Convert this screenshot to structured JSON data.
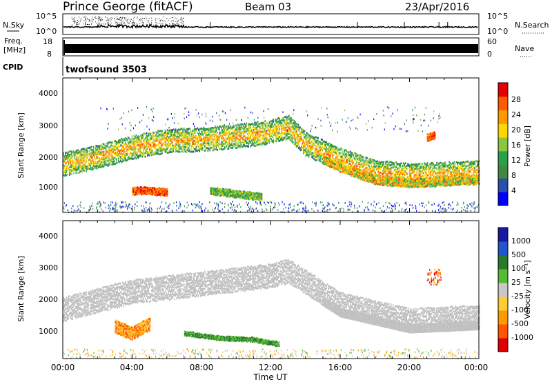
{
  "header": {
    "station": "Prince George (fitACF)",
    "beam": "Beam 03",
    "date": "23/Apr/2016"
  },
  "strips": {
    "nsky_label": "N.Sky",
    "nsky_ticks": [
      "10^5",
      "10^0"
    ],
    "nsearch_label": "N.Search",
    "nsearch_ticks": [
      "10^5",
      "10^0"
    ],
    "freq_label_1": "Freq.",
    "freq_label_2": "[MHz]",
    "freq_ticks": [
      "18",
      "8"
    ],
    "nave_label": "Nave",
    "nave_ticks": [
      "60",
      "0"
    ],
    "cpid_label": "CPID",
    "cpid_value": "twofsound 3503"
  },
  "x_axis": {
    "label": "Time UT",
    "ticks": [
      "00:00",
      "04:00",
      "08:00",
      "12:00",
      "16:00",
      "20:00",
      "00:00"
    ]
  },
  "panels": {
    "power": {
      "ylabel": "Slant Range [km]",
      "yticks": [
        "4000",
        "3000",
        "2000",
        "1000"
      ],
      "cbar_label": "Power [dB]",
      "cbar_ticks": [
        "28",
        "24",
        "20",
        "16",
        "12",
        "8",
        "4"
      ]
    },
    "velocity": {
      "ylabel": "Slant Range [km]",
      "yticks": [
        "4000",
        "3000",
        "2000",
        "1000"
      ],
      "cbar_label": "Velocity [m s⁻¹]",
      "cbar_ticks": [
        "1000",
        "500",
        "100",
        "25",
        "-25",
        "-100",
        "-500",
        "-1000"
      ]
    }
  },
  "colors": {
    "power_scale": [
      "#0000ff",
      "#2a4faa",
      "#3f8a3f",
      "#2aa04a",
      "#8cc63f",
      "#ffd700",
      "#ff9900",
      "#ff5a00",
      "#e60000"
    ],
    "velocity_scale": [
      "#1a1aa0",
      "#2255cc",
      "#2a7a2a",
      "#55bb33",
      "#c8c8c8",
      "#ffcc33",
      "#ff9900",
      "#ff5500",
      "#e00000"
    ],
    "grey": "#c0c0c0"
  },
  "chart_data": [
    {
      "type": "heatmap",
      "title": "Power",
      "xlabel": "Time UT",
      "ylabel": "Slant Range [km]",
      "xlim": [
        "00:00",
        "24:00"
      ],
      "ylim": [
        180,
        4500
      ],
      "zlabel": "Power [dB]",
      "zlim": [
        0,
        30
      ],
      "features": [
        {
          "name": "main echo band",
          "t": [
            "00:00",
            "02:00",
            "04:00",
            "06:00",
            "08:00",
            "10:00",
            "12:00",
            "13:00",
            "14:00",
            "16:00",
            "18:00",
            "20:00",
            "22:00",
            "24:00"
          ],
          "range_km": [
            1750,
            2000,
            2300,
            2500,
            2550,
            2650,
            2800,
            2950,
            2400,
            1900,
            1500,
            1400,
            1450,
            1500
          ],
          "power_db": 18
        },
        {
          "name": "near-range patch",
          "t": [
            "04:00",
            "05:00",
            "06:00"
          ],
          "range_km": [
            900,
            900,
            850
          ],
          "power_db": 22
        },
        {
          "name": "ground scatter strip",
          "t": [
            "08:30",
            "10:00",
            "11:30"
          ],
          "range_km": [
            900,
            800,
            700
          ],
          "power_db": 14
        },
        {
          "name": "far-range cluster",
          "t": [
            "21:00",
            "21:30"
          ],
          "range_km": [
            2600,
            2700
          ],
          "power_db": 26
        }
      ]
    },
    {
      "type": "heatmap",
      "title": "Velocity",
      "xlabel": "Time UT",
      "ylabel": "Slant Range [km]",
      "xlim": [
        "00:00",
        "24:00"
      ],
      "ylim": [
        180,
        4500
      ],
      "zlabel": "Velocity [m s⁻¹]",
      "zlim": [
        -1000,
        1000
      ],
      "features": [
        {
          "name": "ground scatter band",
          "t": [
            "00:00",
            "04:00",
            "08:00",
            "12:00",
            "13:00",
            "16:00",
            "20:00",
            "24:00"
          ],
          "range_km": [
            1750,
            2300,
            2550,
            2800,
            2950,
            1900,
            1400,
            1500
          ],
          "velocity": 0
        },
        {
          "name": "negative velocity patch",
          "t": [
            "03:00",
            "04:00",
            "05:00"
          ],
          "range_km": [
            1200,
            1000,
            1300
          ],
          "velocity": -300
        },
        {
          "name": "positive velocity strip",
          "t": [
            "07:00",
            "09:00",
            "11:00",
            "12:30"
          ],
          "range_km": [
            1000,
            850,
            800,
            650
          ],
          "velocity": 150
        }
      ]
    }
  ]
}
